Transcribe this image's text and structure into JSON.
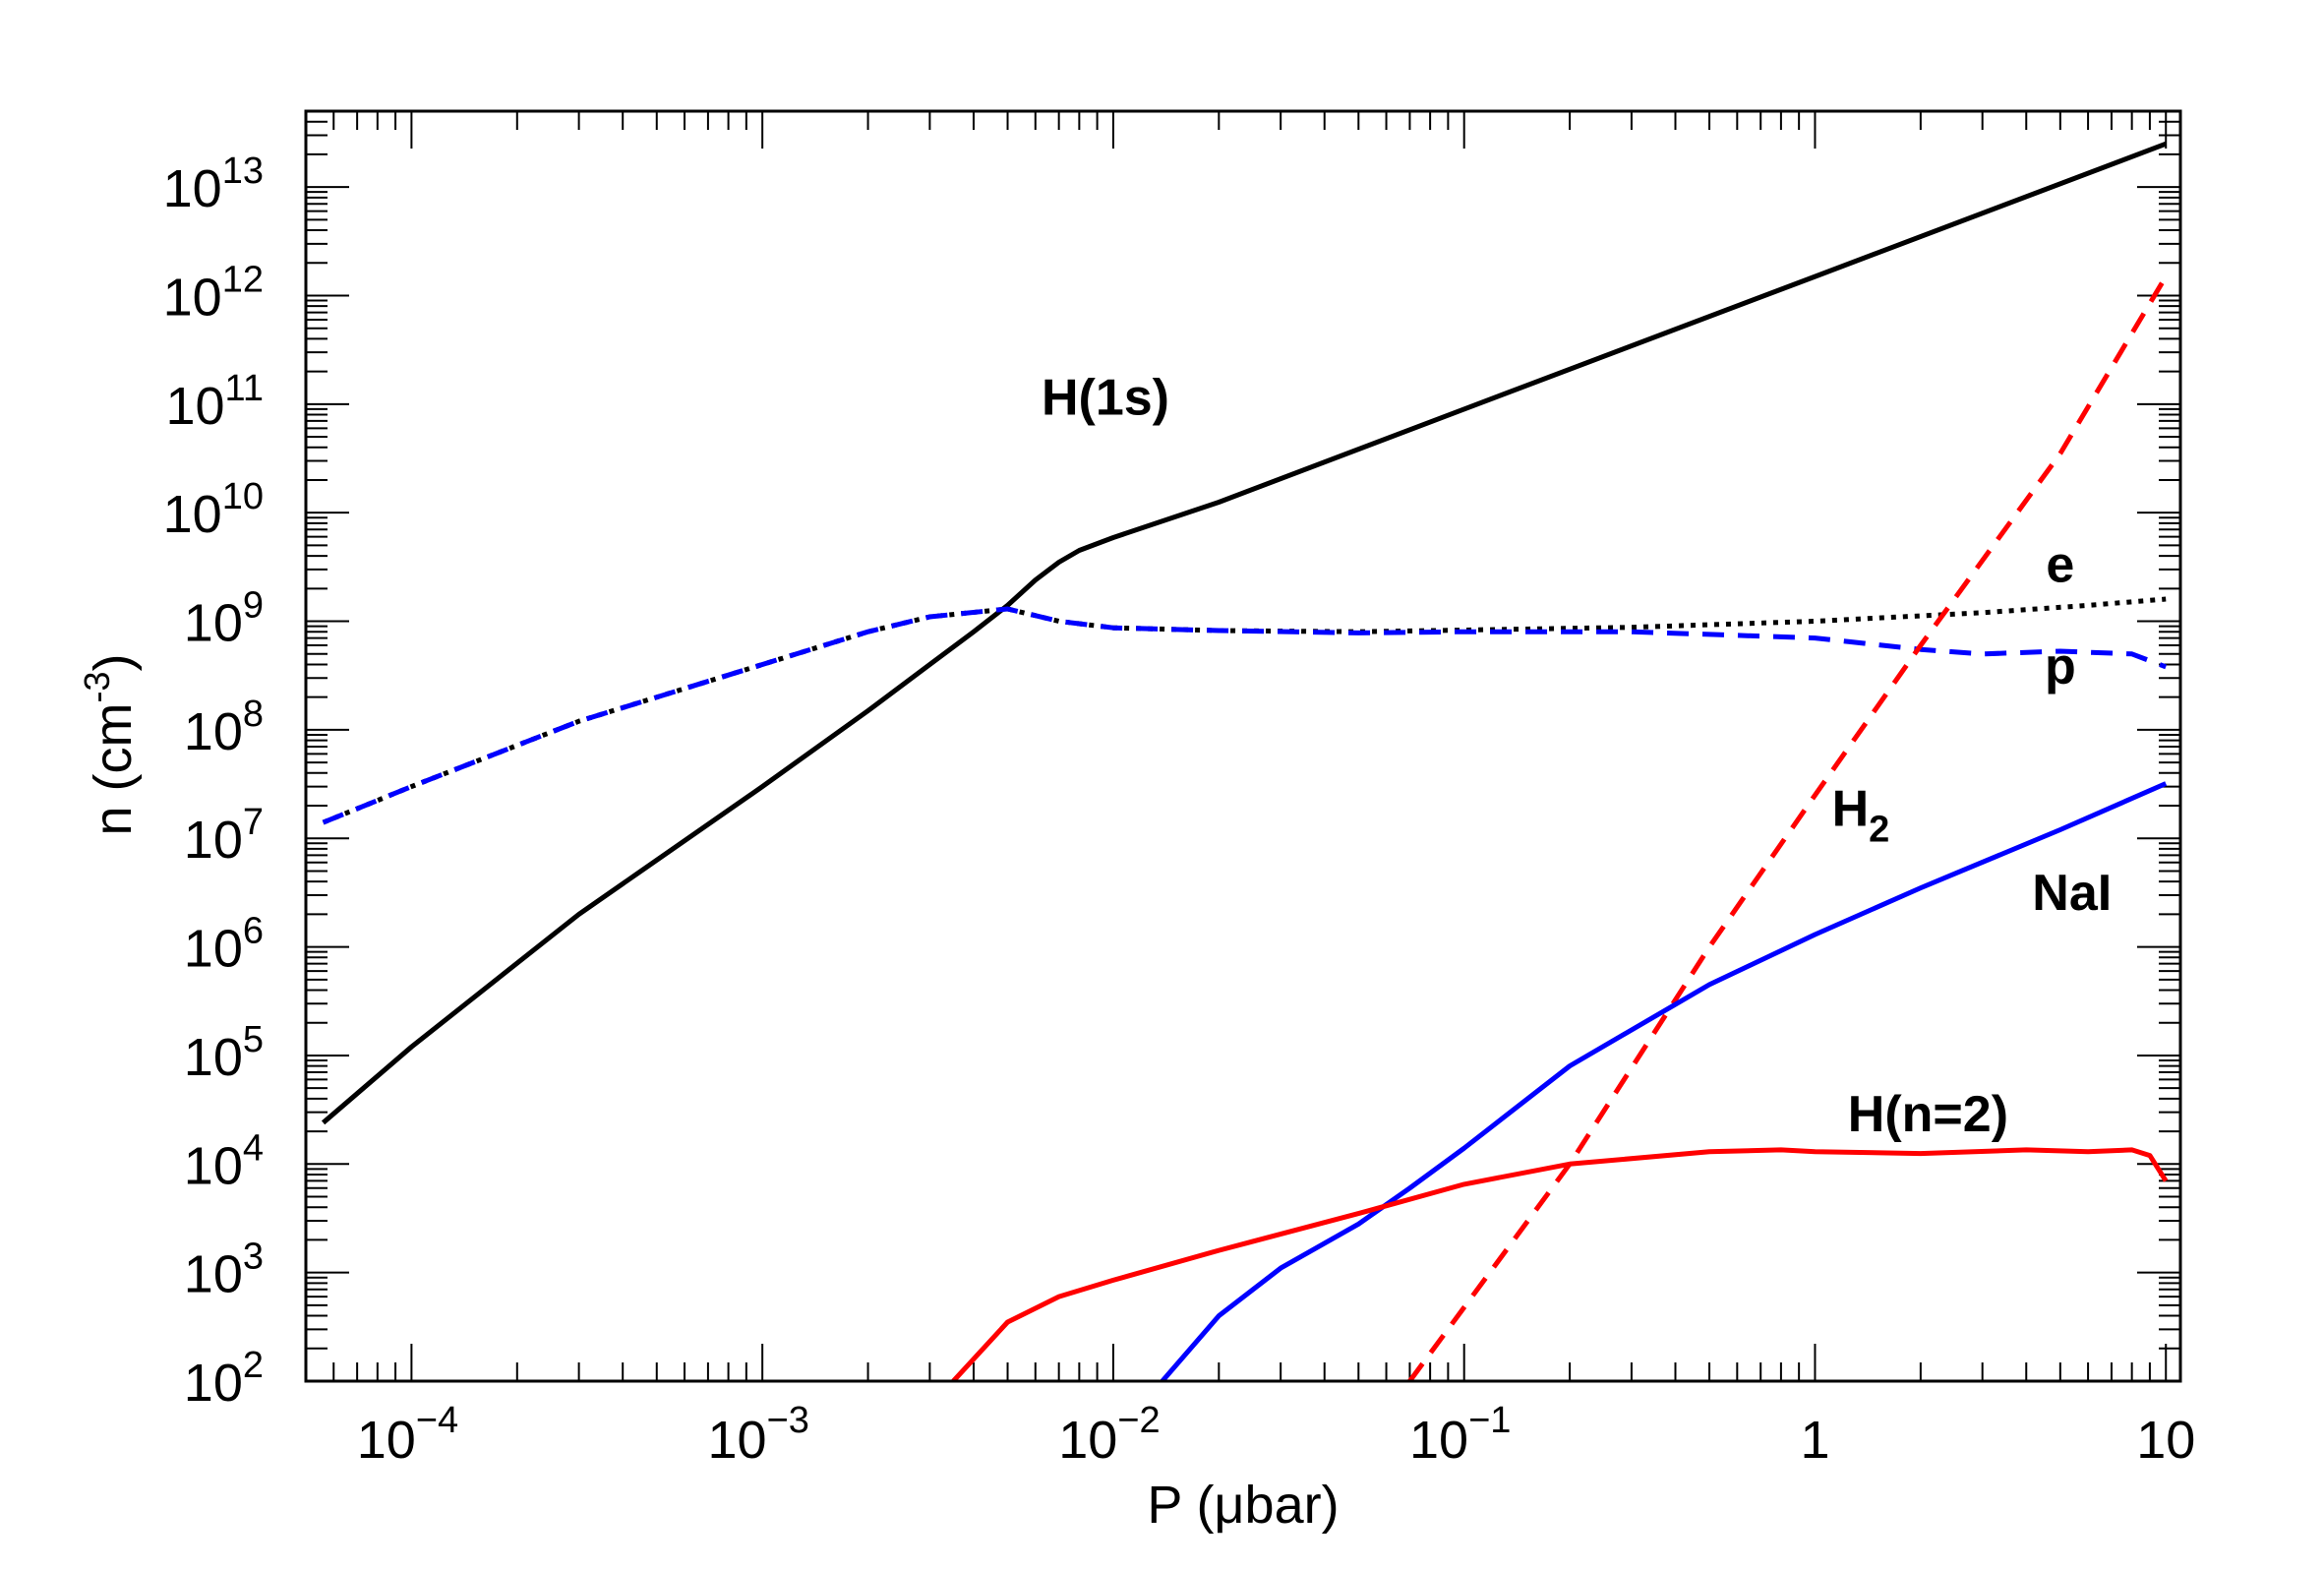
{
  "chart_data": {
    "type": "line",
    "xlabel": "P (μbar)",
    "ylabel": "n (cm",
    "ylabel_sup": "-3",
    "ylabel_close": ")",
    "x_scale": "log",
    "y_scale": "log",
    "xlim": [
      5e-05,
      11
    ],
    "ylim": [
      100,
      50000000000000
    ],
    "grid": false,
    "x_ticks": [
      {
        "value": 0.0001,
        "base": "10",
        "exp": "−4"
      },
      {
        "value": 0.001,
        "base": "10",
        "exp": "−3"
      },
      {
        "value": 0.01,
        "base": "10",
        "exp": "−2"
      },
      {
        "value": 0.1,
        "base": "10",
        "exp": "−1"
      },
      {
        "value": 1,
        "base": "1",
        "exp": ""
      },
      {
        "value": 10,
        "base": "10",
        "exp": ""
      }
    ],
    "y_ticks": [
      {
        "value": 100,
        "base": "10",
        "exp": "2"
      },
      {
        "value": 1000,
        "base": "10",
        "exp": "3"
      },
      {
        "value": 10000,
        "base": "10",
        "exp": "4"
      },
      {
        "value": 100000,
        "base": "10",
        "exp": "5"
      },
      {
        "value": 1000000,
        "base": "10",
        "exp": "6"
      },
      {
        "value": 10000000,
        "base": "10",
        "exp": "7"
      },
      {
        "value": 100000000,
        "base": "10",
        "exp": "8"
      },
      {
        "value": 1000000000,
        "base": "10",
        "exp": "9"
      },
      {
        "value": 10000000000,
        "base": "10",
        "exp": "10"
      },
      {
        "value": 100000000000,
        "base": "10",
        "exp": "11"
      },
      {
        "value": 1000000000000,
        "base": "10",
        "exp": "12"
      },
      {
        "value": 10000000000000,
        "base": "10",
        "exp": "13"
      }
    ],
    "series": [
      {
        "name": "H(1s)",
        "color": "#000000",
        "style": "solid",
        "label_at": [
          0.0095,
          80000000000.0
        ],
        "label_sub": "",
        "points": [
          [
            5.6e-05,
            24000.0
          ],
          [
            0.0001,
            120000.0
          ],
          [
            0.0003,
            2000000.0
          ],
          [
            0.001,
            30000000.0
          ],
          [
            0.002,
            150000000.0
          ],
          [
            0.003,
            400000000.0
          ],
          [
            0.004,
            800000000.0
          ],
          [
            0.005,
            1400000000.0
          ],
          [
            0.006,
            2400000000.0
          ],
          [
            0.007,
            3500000000.0
          ],
          [
            0.008,
            4500000000.0
          ],
          [
            0.01,
            5900000000.0
          ],
          [
            0.02,
            12500000000.0
          ],
          [
            0.1,
            90000000000.0
          ],
          [
            1,
            1500000000000.0
          ],
          [
            10,
            25000000000000.0
          ]
        ]
      },
      {
        "name": "e",
        "color": "#000000",
        "style": "dotted",
        "label_at": [
          5,
          2300000000.0
        ],
        "label_sub": "",
        "points": [
          [
            5.6e-05,
            14000000.0
          ],
          [
            0.0001,
            30000000.0
          ],
          [
            0.0003,
            120000000.0
          ],
          [
            0.001,
            400000000.0
          ],
          [
            0.002,
            800000000.0
          ],
          [
            0.003,
            1100000000.0
          ],
          [
            0.005,
            1300000000.0
          ],
          [
            0.007,
            1000000000.0
          ],
          [
            0.01,
            870000000.0
          ],
          [
            0.02,
            820000000.0
          ],
          [
            0.05,
            800000000.0
          ],
          [
            0.1,
            830000000.0
          ],
          [
            0.3,
            880000000.0
          ],
          [
            1,
            1000000000.0
          ],
          [
            3,
            1200000000.0
          ],
          [
            6,
            1400000000.0
          ],
          [
            10,
            1600000000.0
          ]
        ]
      },
      {
        "name": "p",
        "color": "#0000ff",
        "style": "dashed",
        "label_at": [
          5,
          270000000.0
        ],
        "label_sub": "",
        "points": [
          [
            5.6e-05,
            14000000.0
          ],
          [
            0.0001,
            30000000.0
          ],
          [
            0.0003,
            120000000.0
          ],
          [
            0.001,
            400000000.0
          ],
          [
            0.002,
            800000000.0
          ],
          [
            0.003,
            1100000000.0
          ],
          [
            0.005,
            1300000000.0
          ],
          [
            0.007,
            1000000000.0
          ],
          [
            0.01,
            870000000.0
          ],
          [
            0.02,
            820000000.0
          ],
          [
            0.05,
            780000000.0
          ],
          [
            0.1,
            800000000.0
          ],
          [
            0.3,
            800000000.0
          ],
          [
            1,
            700000000.0
          ],
          [
            2,
            550000000.0
          ],
          [
            3,
            500000000.0
          ],
          [
            5,
            530000000.0
          ],
          [
            8,
            500000000.0
          ],
          [
            10,
            380000000.0
          ]
        ]
      },
      {
        "name": "H",
        "color": "#ff0000",
        "style": "dashed",
        "label_at": [
          1.35,
          13000000.0
        ],
        "label_sub": "2",
        "points": [
          [
            0.07,
            100
          ],
          [
            0.2,
            10000.0
          ],
          [
            0.5,
            1000000.0
          ],
          [
            1,
            25000000.0
          ],
          [
            2,
            600000000.0
          ],
          [
            5,
            35000000000.0
          ],
          [
            10,
            1500000000000.0
          ]
        ]
      },
      {
        "name": "NaI",
        "color": "#0000ff",
        "style": "solid",
        "label_at": [
          5.4,
          2200000.0
        ],
        "label_sub": "",
        "points": [
          [
            0.0138,
            100
          ],
          [
            0.02,
            400
          ],
          [
            0.03,
            1100
          ],
          [
            0.05,
            2800
          ],
          [
            0.07,
            6000
          ],
          [
            0.1,
            14000.0
          ],
          [
            0.2,
            80000.0
          ],
          [
            0.5,
            450000.0
          ],
          [
            1,
            1300000.0
          ],
          [
            2,
            3500000.0
          ],
          [
            5,
            12000000.0
          ],
          [
            10,
            32000000.0
          ]
        ]
      },
      {
        "name": "H(n=2)",
        "color": "#ff0000",
        "style": "solid",
        "label_at": [
          2.1,
          20000.0
        ],
        "label_sub": "",
        "points": [
          [
            0.0035,
            100
          ],
          [
            0.005,
            350
          ],
          [
            0.007,
            600
          ],
          [
            0.01,
            850
          ],
          [
            0.02,
            1600
          ],
          [
            0.05,
            3500
          ],
          [
            0.1,
            6500
          ],
          [
            0.2,
            10000.0
          ],
          [
            0.5,
            13000.0
          ],
          [
            0.8,
            13500.0
          ],
          [
            1,
            13000.0
          ],
          [
            2,
            12500.0
          ],
          [
            4,
            13500.0
          ],
          [
            6,
            13000.0
          ],
          [
            8,
            13500.0
          ],
          [
            9,
            12000.0
          ],
          [
            10,
            7000.0
          ]
        ]
      }
    ]
  }
}
